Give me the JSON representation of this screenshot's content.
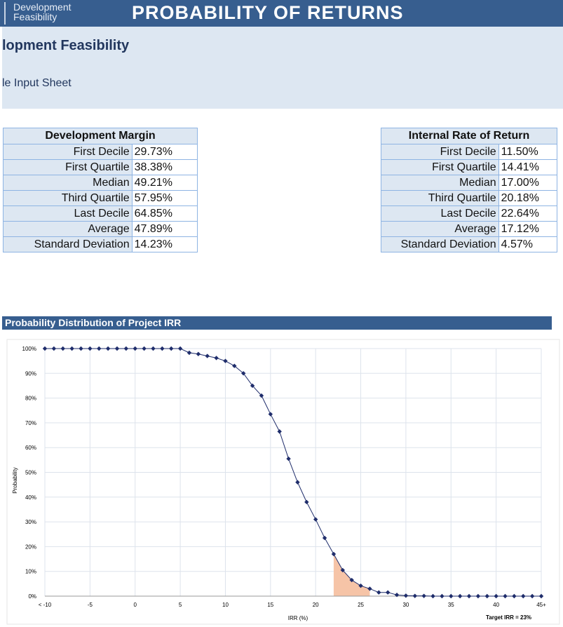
{
  "header": {
    "brand_line1": "Development",
    "brand_line2": "Feasibility",
    "title": "PROBABILITY OF RETURNS"
  },
  "banner": {
    "heading": "lopment Feasibility",
    "subheading": "le Input Sheet"
  },
  "margin_table": {
    "title": "Development Margin",
    "rows": [
      {
        "label": "First Decile",
        "value": "29.73%"
      },
      {
        "label": "First Quartile",
        "value": "38.38%"
      },
      {
        "label": "Median",
        "value": "49.21%"
      },
      {
        "label": "Third Quartile",
        "value": "57.95%"
      },
      {
        "label": "Last Decile",
        "value": "64.85%"
      },
      {
        "label": "Average",
        "value": "47.89%"
      },
      {
        "label": "Standard Deviation",
        "value": "14.23%"
      }
    ]
  },
  "irr_table": {
    "title": "Internal Rate of Return",
    "rows": [
      {
        "label": "First Decile",
        "value": "11.50%"
      },
      {
        "label": "First Quartile",
        "value": "14.41%"
      },
      {
        "label": "Median",
        "value": "17.00%"
      },
      {
        "label": "Third Quartile",
        "value": "20.18%"
      },
      {
        "label": "Last Decile",
        "value": "22.64%"
      },
      {
        "label": "Average",
        "value": "17.12%"
      },
      {
        "label": "Standard Deviation",
        "value": "4.57%"
      }
    ]
  },
  "chart_section": {
    "title": "Probability Distribution of Project IRR"
  },
  "chart_data": {
    "type": "line",
    "xlabel": "IRR (%)",
    "ylabel": "Probability",
    "x_tick_labels": [
      "< -10",
      "-5",
      "0",
      "5",
      "10",
      "15",
      "20",
      "25",
      "30",
      "35",
      "40",
      "45+"
    ],
    "y_tick_labels": [
      "0%",
      "10%",
      "20%",
      "30%",
      "40%",
      "50%",
      "60%",
      "70%",
      "80%",
      "90%",
      "100%"
    ],
    "xlim": [
      -10,
      45
    ],
    "ylim": [
      0,
      100
    ],
    "grid": true,
    "target_label": "Target IRR = 23%",
    "shaded_range": [
      22,
      26
    ],
    "series": [
      {
        "color": "#1f2d6b",
        "x": [
          -10,
          -9,
          -8,
          -7,
          -6,
          -5,
          -4,
          -3,
          -2,
          -1,
          0,
          1,
          2,
          3,
          4,
          5,
          6,
          7,
          8,
          9,
          10,
          11,
          12,
          13,
          14,
          15,
          16,
          17,
          18,
          19,
          20,
          21,
          22,
          23,
          24,
          25,
          26,
          27,
          28,
          29,
          30,
          31,
          32,
          33,
          34,
          35,
          36,
          37,
          38,
          39,
          40,
          41,
          42,
          43,
          44,
          45
        ],
        "y": [
          100,
          100,
          100,
          100,
          100,
          100,
          100,
          100,
          100,
          100,
          100,
          100,
          100,
          100,
          100,
          100,
          98.3,
          97.8,
          97,
          96.2,
          95,
          93,
          90,
          85,
          81,
          73.5,
          66.5,
          55.5,
          46,
          38,
          31,
          23.5,
          17,
          10.5,
          6.5,
          4.2,
          3,
          1.5,
          1.5,
          0.5,
          0.2,
          0.1,
          0.1,
          0,
          0,
          0,
          0,
          0,
          0,
          0,
          0,
          0,
          0,
          0,
          0,
          0
        ]
      }
    ]
  },
  "colors": {
    "header_bg": "#375e8f",
    "banner_bg": "#dde7f2",
    "table_border": "#8eb4e3",
    "series_line": "#1f2d6b",
    "shade_fill": "#f6c4a7"
  }
}
